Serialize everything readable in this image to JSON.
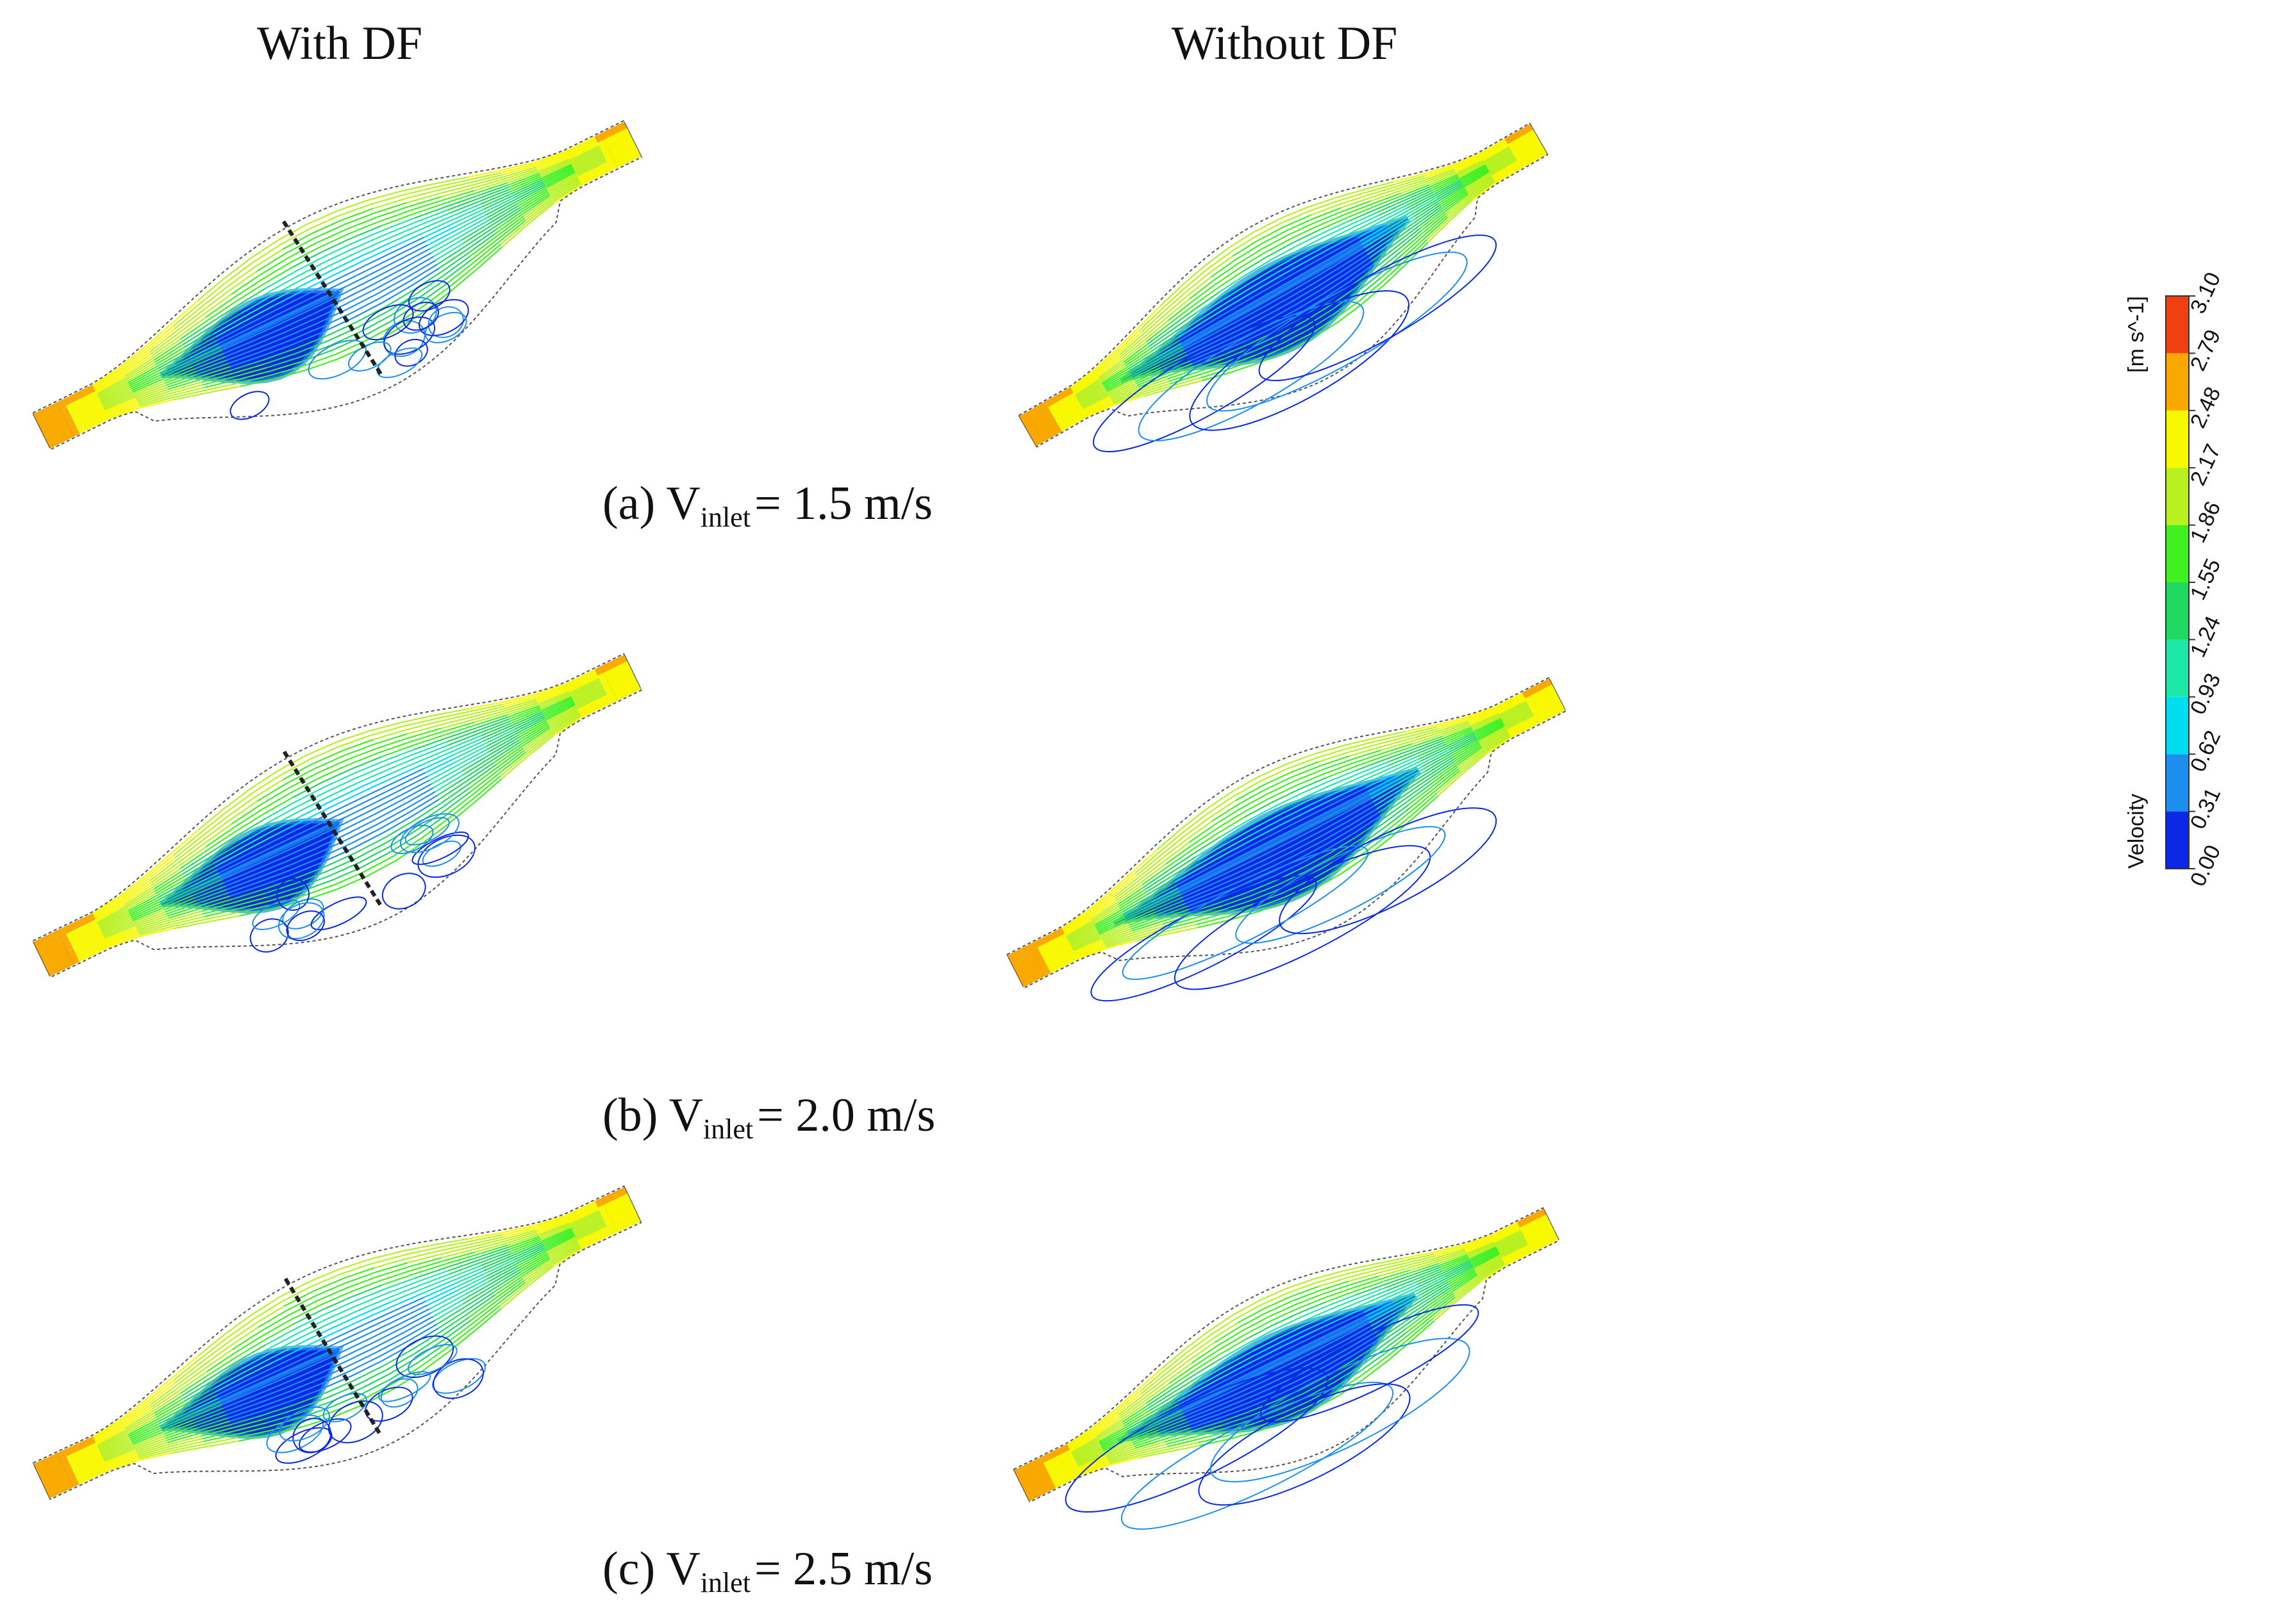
{
  "header": {
    "left": "With DF",
    "right": "Without DF"
  },
  "captions": [
    {
      "label": "(a) V",
      "subscript": "inlet",
      "value": "= 1.5 m/s"
    },
    {
      "label": "(b) V",
      "subscript": "inlet",
      "value": "= 2.0 m/s"
    },
    {
      "label": "(c) V",
      "subscript": "inlet",
      "value": "= 2.5 m/s"
    }
  ],
  "colorbar": {
    "title": "Velocity",
    "unit": "[m s^-1]",
    "ticks": [
      "0.00",
      "0.31",
      "0.62",
      "0.93",
      "1.24",
      "1.55",
      "1.86",
      "2.17",
      "2.48",
      "2.79",
      "3.10"
    ],
    "colors": [
      "#0b28e6",
      "#1c8fee",
      "#00dcf0",
      "#1ee8a8",
      "#20d860",
      "#40f020",
      "#b8f020",
      "#f8f800",
      "#f8a800",
      "#f04010"
    ]
  }
}
